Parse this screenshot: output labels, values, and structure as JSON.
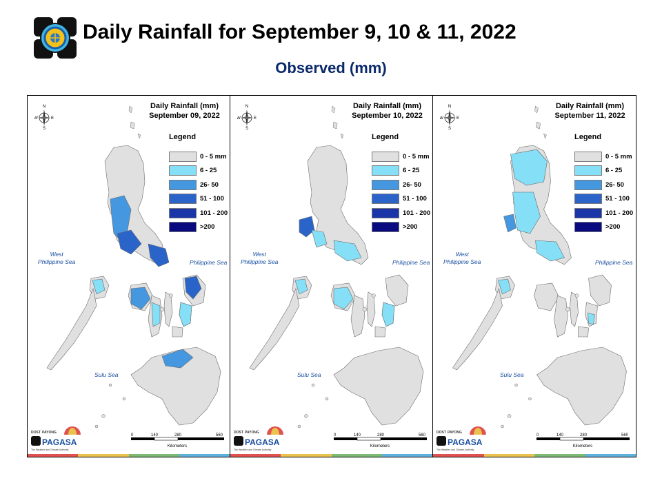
{
  "header": {
    "title": "Daily Rainfall for September 9, 10 & 11, 2022",
    "subtitle": "Observed (mm)"
  },
  "legend": {
    "title": "Legend",
    "classes": [
      {
        "label": "0 - 5 mm",
        "color": "#e0e0e0"
      },
      {
        "label": "6 - 25",
        "color": "#84dff7"
      },
      {
        "label": "26- 50",
        "color": "#4597e0"
      },
      {
        "label": "51 - 100",
        "color": "#2a64c9"
      },
      {
        "label": "101 - 200",
        "color": "#1a35a8"
      },
      {
        "label": ">200",
        "color": "#0a0a80"
      }
    ]
  },
  "panels": [
    {
      "title_line1": "Daily Rainfall (mm)",
      "title_line2": "September 09, 2022"
    },
    {
      "title_line1": "Daily Rainfall (mm)",
      "title_line2": "September 10, 2022"
    },
    {
      "title_line1": "Daily Rainfall (mm)",
      "title_line2": "September 11, 2022"
    }
  ],
  "map_labels": {
    "west_sea_line1": "West",
    "west_sea_line2": "Philippine Sea",
    "east_sea": "Philippine Sea",
    "sulu_sea": "Sulu Sea",
    "compass_n": "N",
    "compass_s": "S",
    "compass_e": "E",
    "compass_w": "W"
  },
  "scale": {
    "ticks": [
      "0",
      "140",
      "280",
      "560"
    ],
    "unit": "Kilometers"
  },
  "branding": {
    "agency": "PAGASA",
    "payong": "PAYONG",
    "dost": "DOST",
    "tagline": "The Weather and Climate Authority",
    "strip_colors": [
      "#e0524f",
      "#e9c34e",
      "#7dbb74",
      "#5fb0da"
    ]
  },
  "colors": {
    "title_text": "#000000",
    "subtitle_text": "#0b2a6b",
    "sea_label": "#1a4fa0",
    "land_outline": "#6a6a6a"
  }
}
